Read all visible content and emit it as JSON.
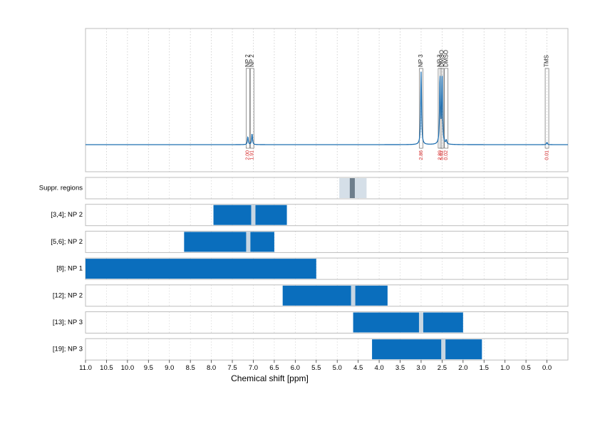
{
  "chart_data": {
    "type": "line",
    "xlabel": "Chemical shift [ppm]",
    "xlim": [
      11.0,
      -0.5
    ],
    "x_reversed": true,
    "x_ticks": [
      "11.0",
      "10.5",
      "10.0",
      "9.5",
      "9.0",
      "8.5",
      "8.0",
      "7.5",
      "7.0",
      "6.5",
      "6.0",
      "5.5",
      "5.0",
      "4.5",
      "4.0",
      "3.5",
      "3.0",
      "2.5",
      "2.0",
      "1.5",
      "1.0",
      "0.5",
      "0.0"
    ],
    "grid": true,
    "colors": {
      "spectrum": "#1f6fb0",
      "bar": "#0a6ebd",
      "marker": "#c8d6e2",
      "suppr_outer": "#d5dfe8",
      "suppr_inner": "#6e7e8c",
      "integral_label": "#d62728",
      "frame": "#bdbdbd"
    },
    "spectrum": {
      "peaks": [
        {
          "label": "NP 2",
          "shift": 7.13,
          "height": 0.1,
          "integral": "2.00"
        },
        {
          "label": "NP 2",
          "shift": 7.03,
          "height": 0.14,
          "integral": "1.91"
        },
        {
          "label": "NP 3",
          "shift": 3.0,
          "height": 0.93,
          "integral": "2.86"
        },
        {
          "label": "NP 3",
          "shift": 2.55,
          "height": 0.86,
          "integral": "2.89"
        },
        {
          "label": "DMSO",
          "shift": 2.5,
          "height": 0.88,
          "integral": "5.62"
        },
        {
          "label": "DMSO",
          "shift": 2.4,
          "height": 0.05,
          "integral": "0.02"
        },
        {
          "label": "TMS",
          "shift": 0.0,
          "height": 0.03,
          "integral": "0.01"
        }
      ]
    },
    "suppression_regions": {
      "label": "Suppr. regions",
      "outer": [
        4.95,
        4.3
      ],
      "inner": [
        4.7,
        4.58
      ]
    },
    "rows": [
      {
        "label": "[3,4]; NP 2",
        "range": [
          7.95,
          6.2
        ],
        "marker": 7.0
      },
      {
        "label": "[5,6]; NP 2",
        "range": [
          8.65,
          6.5
        ],
        "marker": 7.12
      },
      {
        "label": "[8]; NP 1",
        "range": [
          11.0,
          5.5
        ],
        "marker": null
      },
      {
        "label": "[12]; NP 2",
        "range": [
          6.3,
          3.8
        ],
        "marker": 4.62
      },
      {
        "label": "[13]; NP 3",
        "range": [
          4.62,
          2.0
        ],
        "marker": 3.0
      },
      {
        "label": "[19]; NP 3",
        "range": [
          4.17,
          1.55
        ],
        "marker": 2.47
      }
    ]
  }
}
